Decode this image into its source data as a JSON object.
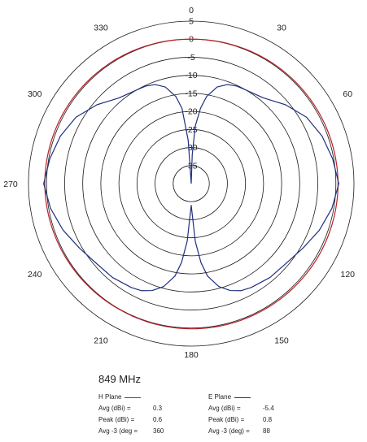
{
  "chart_data": {
    "type": "polar",
    "angle_ticks": [
      "0",
      "30",
      "60",
      "90",
      "120",
      "150",
      "180",
      "210",
      "240",
      "270",
      "300",
      "330"
    ],
    "radial_ticks": [
      "5",
      "0",
      "-5",
      "-10",
      "-15",
      "-20",
      "-25",
      "-30",
      "-35"
    ],
    "radial_range": [
      -40,
      5
    ],
    "frequency_label": "849 MHz",
    "series": [
      {
        "name": "H Plane",
        "color": "#b8202a",
        "angles": [
          0,
          30,
          60,
          90,
          120,
          150,
          180,
          210,
          240,
          270,
          300,
          330,
          360
        ],
        "values": [
          0.0,
          0.2,
          0.4,
          0.6,
          0.5,
          0.3,
          0.2,
          0.1,
          0.3,
          0.5,
          0.4,
          0.2,
          0.0
        ],
        "stats": [
          {
            "label": "Avg (dBi) =",
            "value": "0.3"
          },
          {
            "label": "Peak (dBi) =",
            "value": "0.6"
          },
          {
            "label": "Avg -3 (deg =",
            "value": "360"
          }
        ]
      },
      {
        "name": "E Plane",
        "color": "#1f2f80",
        "angles": [
          0,
          2,
          4,
          7,
          10,
          15,
          20,
          25,
          30,
          40,
          50,
          60,
          70,
          80,
          90,
          100,
          110,
          120,
          130,
          140,
          150,
          155,
          160,
          165,
          170,
          173,
          176,
          180,
          184,
          187,
          190,
          195,
          200,
          205,
          210,
          220,
          230,
          240,
          250,
          260,
          270,
          280,
          290,
          300,
          310,
          320,
          330,
          335,
          340,
          345,
          350,
          353,
          356,
          360
        ],
        "values": [
          -40,
          -32,
          -24,
          -19,
          -15.5,
          -12.3,
          -10.8,
          -10.2,
          -10.0,
          -9.0,
          -6.0,
          -3.2,
          -1.5,
          -0.3,
          0.8,
          -0.5,
          -2.3,
          -4.3,
          -5.7,
          -6.1,
          -6.8,
          -7.3,
          -8.5,
          -10.5,
          -14,
          -18,
          -24,
          -34,
          -24,
          -18,
          -14,
          -10.5,
          -8.5,
          -7.3,
          -6.8,
          -6.1,
          -5.7,
          -4.3,
          -2.3,
          -0.5,
          0.8,
          -0.3,
          -1.5,
          -3.2,
          -6.0,
          -9.0,
          -10.0,
          -10.2,
          -10.8,
          -12.3,
          -15.5,
          -19,
          -28,
          -40
        ],
        "stats": [
          {
            "label": "Avg (dBi) =",
            "value": "-5.4"
          },
          {
            "label": "Peak (dBi) =",
            "value": "0.8"
          },
          {
            "label": "Avg -3 (deg) =",
            "value": "88"
          }
        ]
      }
    ]
  }
}
